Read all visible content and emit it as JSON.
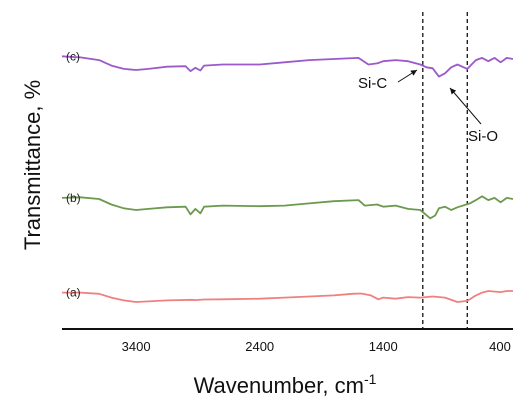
{
  "chart_data": {
    "type": "line",
    "xlabel": "Wavenumber, cm",
    "xlabel_superscript": "-1",
    "ylabel": "Transmittance, %",
    "x_reversed": true,
    "xlim": [
      4000,
      350
    ],
    "xticks": [
      {
        "value": 3400,
        "label": "3400"
      },
      {
        "value": 2400,
        "label": "2400"
      },
      {
        "value": 1400,
        "label": "1400"
      },
      {
        "value": 400,
        "label": "400"
      }
    ],
    "y_ticks_shown": false,
    "grid": false,
    "vlines": [
      1080,
      720
    ],
    "annotations": [
      {
        "text": "Si-C",
        "x": 1080,
        "y": 0.78
      },
      {
        "text": "Si-O",
        "x": 720,
        "y": 0.62
      }
    ],
    "series": [
      {
        "label": "(a)",
        "color": "#f08080",
        "points": [
          [
            4000,
            0.17
          ],
          [
            3850,
            0.17
          ],
          [
            3700,
            0.15
          ],
          [
            3600,
            0.08
          ],
          [
            3500,
            0.03
          ],
          [
            3400,
            0.0
          ],
          [
            3300,
            0.01
          ],
          [
            3150,
            0.03
          ],
          [
            2950,
            0.04
          ],
          [
            2920,
            0.035
          ],
          [
            2850,
            0.045
          ],
          [
            2700,
            0.05
          ],
          [
            2400,
            0.06
          ],
          [
            2200,
            0.08
          ],
          [
            2000,
            0.1
          ],
          [
            1800,
            0.12
          ],
          [
            1650,
            0.15
          ],
          [
            1580,
            0.155
          ],
          [
            1500,
            0.12
          ],
          [
            1440,
            0.05
          ],
          [
            1400,
            0.08
          ],
          [
            1300,
            0.06
          ],
          [
            1200,
            0.09
          ],
          [
            1100,
            0.08
          ],
          [
            1000,
            0.1
          ],
          [
            900,
            0.08
          ],
          [
            800,
            0.0
          ],
          [
            720,
            0.02
          ],
          [
            650,
            0.12
          ],
          [
            600,
            0.17
          ],
          [
            550,
            0.2
          ],
          [
            450,
            0.18
          ],
          [
            400,
            0.2
          ],
          [
            350,
            0.2
          ]
        ]
      },
      {
        "label": "(b)",
        "color": "#6b9a4e",
        "points": [
          [
            4000,
            0.22
          ],
          [
            3850,
            0.23
          ],
          [
            3700,
            0.2
          ],
          [
            3600,
            0.1
          ],
          [
            3500,
            0.03
          ],
          [
            3400,
            0.0
          ],
          [
            3300,
            0.02
          ],
          [
            3150,
            0.05
          ],
          [
            3000,
            0.06
          ],
          [
            2960,
            -0.08
          ],
          [
            2920,
            0.02
          ],
          [
            2880,
            -0.06
          ],
          [
            2850,
            0.06
          ],
          [
            2700,
            0.08
          ],
          [
            2400,
            0.07
          ],
          [
            2200,
            0.08
          ],
          [
            2000,
            0.12
          ],
          [
            1800,
            0.16
          ],
          [
            1600,
            0.18
          ],
          [
            1550,
            0.08
          ],
          [
            1450,
            0.1
          ],
          [
            1400,
            0.06
          ],
          [
            1300,
            0.08
          ],
          [
            1200,
            0.02
          ],
          [
            1100,
            0.0
          ],
          [
            1020,
            -0.15
          ],
          [
            980,
            -0.1
          ],
          [
            950,
            0.03
          ],
          [
            900,
            0.06
          ],
          [
            850,
            0.0
          ],
          [
            800,
            0.05
          ],
          [
            700,
            0.12
          ],
          [
            650,
            0.18
          ],
          [
            600,
            0.25
          ],
          [
            550,
            0.18
          ],
          [
            500,
            0.22
          ],
          [
            450,
            0.14
          ],
          [
            400,
            0.22
          ],
          [
            350,
            0.2
          ]
        ]
      },
      {
        "label": "(c)",
        "color": "#9b59c9",
        "points": [
          [
            4000,
            0.25
          ],
          [
            3850,
            0.23
          ],
          [
            3700,
            0.18
          ],
          [
            3600,
            0.08
          ],
          [
            3500,
            0.02
          ],
          [
            3400,
            0.0
          ],
          [
            3300,
            0.02
          ],
          [
            3150,
            0.06
          ],
          [
            3000,
            0.07
          ],
          [
            2960,
            -0.02
          ],
          [
            2920,
            0.04
          ],
          [
            2880,
            -0.01
          ],
          [
            2850,
            0.08
          ],
          [
            2700,
            0.1
          ],
          [
            2400,
            0.1
          ],
          [
            2200,
            0.14
          ],
          [
            2000,
            0.18
          ],
          [
            1800,
            0.2
          ],
          [
            1600,
            0.22
          ],
          [
            1520,
            0.1
          ],
          [
            1450,
            0.12
          ],
          [
            1400,
            0.16
          ],
          [
            1300,
            0.18
          ],
          [
            1200,
            0.16
          ],
          [
            1100,
            0.1
          ],
          [
            1050,
            0.05
          ],
          [
            1000,
            0.03
          ],
          [
            950,
            -0.12
          ],
          [
            900,
            -0.06
          ],
          [
            850,
            0.05
          ],
          [
            800,
            0.1
          ],
          [
            760,
            0.06
          ],
          [
            720,
            0.02
          ],
          [
            650,
            0.18
          ],
          [
            600,
            0.22
          ],
          [
            550,
            0.16
          ],
          [
            500,
            0.22
          ],
          [
            450,
            0.14
          ],
          [
            400,
            0.22
          ],
          [
            350,
            0.2
          ]
        ]
      }
    ]
  }
}
